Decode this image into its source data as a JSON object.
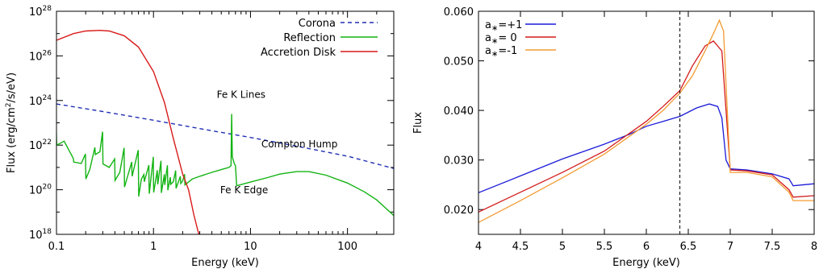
{
  "colors": {
    "corona": "#1f2fb3",
    "reflection": "#12b312",
    "disk": "#d91a1a",
    "spin_plus": "#1a1ad9",
    "spin_zero": "#d41a1a",
    "spin_minus": "#f39b33",
    "line_marker": "#000000"
  },
  "chart_data": [
    {
      "type": "line",
      "xlabel": "Energy (keV)",
      "ylabel": "Flux (erg/cm²/s/eV)",
      "ylabel_parts": {
        "pre": "Flux (erg/cm",
        "sup": "2",
        "post": "/s/eV)"
      },
      "xscale": "log",
      "yscale": "log",
      "xlim": [
        0.1,
        300
      ],
      "ylim": [
        1e+18,
        1e+28
      ],
      "xticks": [
        {
          "v": 0.1,
          "label": "0.1"
        },
        {
          "v": 1,
          "label": "1"
        },
        {
          "v": 10,
          "label": "10"
        },
        {
          "v": 100,
          "label": "100"
        }
      ],
      "yticks": [
        {
          "v": 1e+18,
          "base": "10",
          "exp": "18"
        },
        {
          "v": 1e+20,
          "base": "10",
          "exp": "20"
        },
        {
          "v": 1e+22,
          "base": "10",
          "exp": "22"
        },
        {
          "v": 1e+24,
          "base": "10",
          "exp": "24"
        },
        {
          "v": 1e+26,
          "base": "10",
          "exp": "26"
        },
        {
          "v": 1e+28,
          "base": "10",
          "exp": "28"
        }
      ],
      "legend_position": "top-right",
      "series": [
        {
          "name": "Corona",
          "style": "dashed",
          "color_key": "corona",
          "points": [
            [
              0.1,
              7e+23
            ],
            [
              0.3,
              3.2e+23
            ],
            [
              1,
              1.3e+23
            ],
            [
              3,
              5.5e+22
            ],
            [
              10,
              2.2e+22
            ],
            [
              30,
              9e+21
            ],
            [
              100,
              3.2e+21
            ],
            [
              300,
              9e+20
            ]
          ]
        },
        {
          "name": "Reflection",
          "style": "solid",
          "color_key": "reflection",
          "points": [
            [
              0.1,
              2e+22
            ],
            [
              0.12,
              1.5e+22
            ],
            [
              0.15,
              2e+21
            ],
            [
              0.18,
              1.5e+21
            ],
            [
              0.22,
              8e+20
            ],
            [
              0.28,
              5e+21
            ],
            [
              0.35,
              1e+21
            ],
            [
              0.45,
              6e+20
            ],
            [
              0.6,
              7e+20
            ],
            [
              0.75,
              3e+20
            ],
            [
              0.9,
              2e+20
            ],
            [
              1,
              3e+20
            ],
            [
              1.3,
              2.5e+20
            ],
            [
              1.6,
              2.3e+20
            ],
            [
              2,
              2.5e+20
            ],
            [
              2.5,
              3e+20
            ],
            [
              3,
              4e+20
            ],
            [
              4,
              6e+20
            ],
            [
              5,
              8e+20
            ],
            [
              6,
              1e+21
            ],
            [
              6.3,
              1.2e+21
            ],
            [
              6.4,
              2.5e+23
            ],
            [
              6.5,
              3e+21
            ],
            [
              6.8,
              1.5e+21
            ],
            [
              7,
              1.2e+21
            ],
            [
              7.2,
              1.5e+20
            ],
            [
              8,
              1.7e+20
            ],
            [
              10,
              2.2e+20
            ],
            [
              15,
              3.5e+20
            ],
            [
              20,
              5e+20
            ],
            [
              30,
              6.5e+20
            ],
            [
              40,
              6.5e+20
            ],
            [
              60,
              4.5e+20
            ],
            [
              100,
              2e+20
            ],
            [
              150,
              8e+19
            ],
            [
              200,
              3.5e+19
            ],
            [
              300,
              7e+18
            ]
          ],
          "noise": [
            [
              0.1,
              0.5
            ],
            [
              0.15,
              0.1
            ],
            [
              0.2,
              0.7
            ],
            [
              0.25,
              0.2
            ],
            [
              0.3,
              0.9
            ],
            [
              0.4,
              0.6
            ],
            [
              0.5,
              1.1
            ],
            [
              0.6,
              0.4
            ],
            [
              0.7,
              1.3
            ],
            [
              0.8,
              0.2
            ],
            [
              0.9,
              0.8
            ],
            [
              1,
              1.0
            ],
            [
              1.1,
              0.4
            ],
            [
              1.2,
              0.9
            ],
            [
              1.3,
              0.3
            ],
            [
              1.4,
              0.7
            ],
            [
              1.5,
              0.2
            ],
            [
              1.7,
              0.5
            ],
            [
              1.9,
              0.2
            ],
            [
              2.1,
              0.3
            ]
          ]
        },
        {
          "name": "Accretion Disk",
          "style": "solid",
          "color_key": "disk",
          "points": [
            [
              0.1,
              5e+26
            ],
            [
              0.15,
              1e+27
            ],
            [
              0.2,
              1.3e+27
            ],
            [
              0.28,
              1.4e+27
            ],
            [
              0.35,
              1.3e+27
            ],
            [
              0.5,
              8e+26
            ],
            [
              0.7,
              2.5e+26
            ],
            [
              1,
              2e+25
            ],
            [
              1.3,
              8e+23
            ],
            [
              1.6,
              2e+22
            ],
            [
              2,
              5e+20
            ],
            [
              2.3,
              1e+20
            ],
            [
              2.6,
              8e+18
            ],
            [
              2.9,
              1.2e+18
            ],
            [
              3,
              8e+17
            ]
          ]
        }
      ],
      "annotations": [
        {
          "text": "Fe K Lines",
          "x": 8,
          "y": 1.3e+24
        },
        {
          "text": "Compton Hump",
          "x": 32,
          "y": 8e+21
        },
        {
          "text": "Fe K Edge",
          "x": 8.6,
          "y": 7e+19
        }
      ]
    },
    {
      "type": "line",
      "xlabel": "Energy (keV)",
      "ylabel": "Flux",
      "xlim": [
        4,
        8
      ],
      "ylim": [
        0.015,
        0.06
      ],
      "xticks": [
        {
          "v": 4,
          "label": "4"
        },
        {
          "v": 4.5,
          "label": "4.5"
        },
        {
          "v": 5,
          "label": "5"
        },
        {
          "v": 5.5,
          "label": "5.5"
        },
        {
          "v": 6,
          "label": "6"
        },
        {
          "v": 6.5,
          "label": "6.5"
        },
        {
          "v": 7,
          "label": "7"
        },
        {
          "v": 7.5,
          "label": "7.5"
        },
        {
          "v": 8,
          "label": "8"
        }
      ],
      "yticks": [
        {
          "v": 0.02,
          "label": "0.020"
        },
        {
          "v": 0.03,
          "label": "0.030"
        },
        {
          "v": 0.04,
          "label": "0.040"
        },
        {
          "v": 0.05,
          "label": "0.050"
        },
        {
          "v": 0.06,
          "label": "0.060"
        }
      ],
      "vline": {
        "x": 6.4,
        "style": "dashed"
      },
      "legend_position": "top-left",
      "series": [
        {
          "name": "a∗=+1",
          "label_parts": {
            "pre": "a",
            "sub": "∗",
            "post": "=+1"
          },
          "color_key": "spin_plus",
          "points": [
            [
              4,
              0.0234
            ],
            [
              4.5,
              0.0268
            ],
            [
              5,
              0.0302
            ],
            [
              5.5,
              0.0332
            ],
            [
              5.8,
              0.0352
            ],
            [
              6,
              0.0368
            ],
            [
              6.2,
              0.0378
            ],
            [
              6.4,
              0.0388
            ],
            [
              6.6,
              0.0405
            ],
            [
              6.75,
              0.0413
            ],
            [
              6.85,
              0.0408
            ],
            [
              6.9,
              0.0385
            ],
            [
              6.95,
              0.03
            ],
            [
              7,
              0.0282
            ],
            [
              7.2,
              0.028
            ],
            [
              7.5,
              0.0272
            ],
            [
              7.7,
              0.0262
            ],
            [
              7.75,
              0.0248
            ],
            [
              8,
              0.0252
            ]
          ]
        },
        {
          "name": "a∗= 0",
          "label_parts": {
            "pre": "a",
            "sub": "∗",
            "post": "= 0"
          },
          "color_key": "spin_zero",
          "points": [
            [
              4,
              0.0195
            ],
            [
              4.5,
              0.0235
            ],
            [
              5,
              0.0275
            ],
            [
              5.5,
              0.0318
            ],
            [
              6,
              0.0378
            ],
            [
              6.2,
              0.0408
            ],
            [
              6.4,
              0.044
            ],
            [
              6.55,
              0.049
            ],
            [
              6.7,
              0.053
            ],
            [
              6.8,
              0.054
            ],
            [
              6.9,
              0.052
            ],
            [
              6.95,
              0.04
            ],
            [
              7,
              0.028
            ],
            [
              7.2,
              0.0278
            ],
            [
              7.5,
              0.027
            ],
            [
              7.7,
              0.024
            ],
            [
              7.75,
              0.0225
            ],
            [
              8,
              0.0228
            ]
          ]
        },
        {
          "name": "a∗=-1",
          "label_parts": {
            "pre": "a",
            "sub": "∗",
            "post": "=-1"
          },
          "color_key": "spin_minus",
          "points": [
            [
              4,
              0.0174
            ],
            [
              4.5,
              0.0218
            ],
            [
              5,
              0.0264
            ],
            [
              5.5,
              0.0312
            ],
            [
              6,
              0.0372
            ],
            [
              6.2,
              0.04
            ],
            [
              6.4,
              0.0435
            ],
            [
              6.55,
              0.047
            ],
            [
              6.7,
              0.052
            ],
            [
              6.8,
              0.0555
            ],
            [
              6.87,
              0.0582
            ],
            [
              6.92,
              0.056
            ],
            [
              6.97,
              0.038
            ],
            [
              7,
              0.0275
            ],
            [
              7.2,
              0.0275
            ],
            [
              7.5,
              0.0266
            ],
            [
              7.7,
              0.0235
            ],
            [
              7.75,
              0.0218
            ],
            [
              8,
              0.0218
            ]
          ]
        }
      ]
    }
  ]
}
